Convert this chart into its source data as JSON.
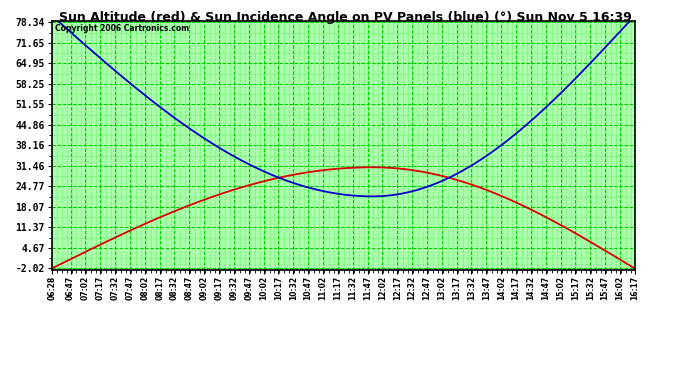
{
  "title": "Sun Altitude (red) & Sun Incidence Angle on PV Panels (blue) (°) Sun Nov 5 16:39",
  "copyright": "Copyright 2006 Cartronics.com",
  "yticks": [
    78.34,
    71.65,
    64.95,
    58.25,
    51.55,
    44.86,
    38.16,
    31.46,
    24.77,
    18.07,
    11.37,
    4.67,
    -2.02
  ],
  "ymin": -2.02,
  "ymax": 78.34,
  "plot_bg": "#aaffaa",
  "grid_color": "#00cc00",
  "red_line_color": "#dd0000",
  "blue_line_color": "#0000cc",
  "x_start_min": 388,
  "x_end_min": 977,
  "xtick_labels": [
    "06:28",
    "06:47",
    "07:02",
    "07:17",
    "07:32",
    "07:47",
    "08:02",
    "08:17",
    "08:32",
    "08:47",
    "09:02",
    "09:17",
    "09:32",
    "09:47",
    "10:02",
    "10:17",
    "10:32",
    "10:47",
    "11:02",
    "11:17",
    "11:32",
    "11:47",
    "12:02",
    "12:17",
    "12:32",
    "12:47",
    "13:02",
    "13:17",
    "13:32",
    "13:47",
    "14:02",
    "14:17",
    "14:32",
    "14:47",
    "15:02",
    "15:17",
    "15:32",
    "15:47",
    "16:02",
    "16:17"
  ],
  "xtick_abs_min": [
    388,
    407,
    422,
    437,
    452,
    467,
    482,
    497,
    512,
    527,
    542,
    557,
    572,
    587,
    602,
    617,
    632,
    647,
    662,
    677,
    692,
    707,
    722,
    737,
    752,
    767,
    782,
    797,
    812,
    827,
    842,
    857,
    872,
    887,
    902,
    917,
    932,
    947,
    962,
    977
  ],
  "red_peak": 31.0,
  "red_min": -2.02,
  "blue_peak_start": 80.5,
  "blue_min": 21.5,
  "solar_noon_abs_min": 712,
  "title_fontsize": 9,
  "ytick_fontsize": 7,
  "xtick_fontsize": 5.5
}
